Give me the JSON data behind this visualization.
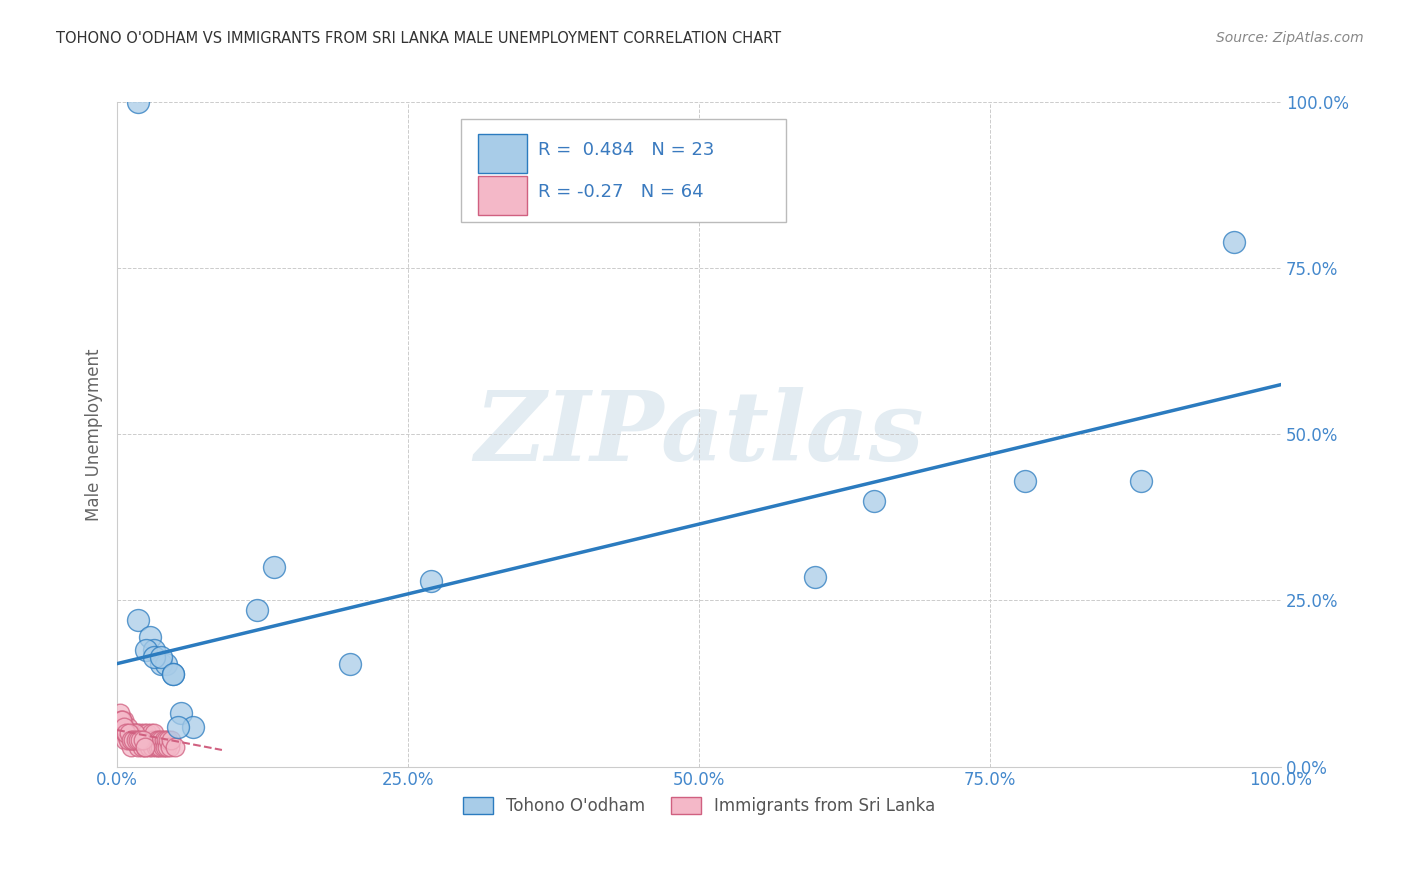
{
  "title": "TOHONO O'ODHAM VS IMMIGRANTS FROM SRI LANKA MALE UNEMPLOYMENT CORRELATION CHART",
  "source": "Source: ZipAtlas.com",
  "ylabel": "Male Unemployment",
  "xlim": [
    0.0,
    1.0
  ],
  "ylim": [
    0.0,
    1.0
  ],
  "xticks": [
    0.0,
    0.25,
    0.5,
    0.75,
    1.0
  ],
  "yticks": [
    0.0,
    0.25,
    0.5,
    0.75,
    1.0
  ],
  "xticklabels": [
    "0.0%",
    "25.0%",
    "50.0%",
    "75.0%",
    "100.0%"
  ],
  "yticklabels": [
    "0.0%",
    "25.0%",
    "50.0%",
    "75.0%",
    "100.0%"
  ],
  "blue_color": "#a8cce8",
  "pink_color": "#f4b8c8",
  "trend_blue_color": "#2b7bbf",
  "trend_pink_color": "#d06080",
  "R_blue": 0.484,
  "N_blue": 23,
  "R_pink": -0.27,
  "N_pink": 64,
  "legend_label_blue": "Tohono O'odham",
  "legend_label_pink": "Immigrants from Sri Lanka",
  "watermark": "ZIPatlas",
  "background_color": "#ffffff",
  "blue_label_color": "#3a7abf",
  "tick_color": "#4488cc",
  "title_color": "#333333",
  "source_color": "#888888",
  "ylabel_color": "#666666",
  "blue_trend_start_x": 0.0,
  "blue_trend_start_y": 0.155,
  "blue_trend_end_x": 1.0,
  "blue_trend_end_y": 0.575,
  "pink_trend_start_x": 0.0,
  "pink_trend_start_y": 0.055,
  "pink_trend_end_x": 0.09,
  "pink_trend_end_y": 0.025,
  "blue_points_x": [
    0.018,
    0.028,
    0.032,
    0.038,
    0.042,
    0.048,
    0.055,
    0.065,
    0.12,
    0.135,
    0.27,
    0.6,
    0.78,
    0.88,
    0.96,
    0.025,
    0.032,
    0.038,
    0.048,
    0.052,
    0.2,
    0.018,
    0.65
  ],
  "blue_points_y": [
    0.22,
    0.195,
    0.175,
    0.155,
    0.155,
    0.14,
    0.08,
    0.06,
    0.235,
    0.3,
    0.28,
    0.285,
    0.43,
    0.43,
    0.79,
    0.175,
    0.165,
    0.165,
    0.14,
    0.06,
    0.155,
    1.0,
    0.4
  ],
  "pink_points_x": [
    0.003,
    0.005,
    0.006,
    0.007,
    0.008,
    0.009,
    0.01,
    0.011,
    0.012,
    0.013,
    0.014,
    0.015,
    0.016,
    0.017,
    0.018,
    0.019,
    0.02,
    0.021,
    0.022,
    0.023,
    0.024,
    0.025,
    0.026,
    0.027,
    0.028,
    0.029,
    0.03,
    0.031,
    0.032,
    0.033,
    0.034,
    0.035,
    0.036,
    0.037,
    0.038,
    0.039,
    0.04,
    0.041,
    0.042,
    0.043,
    0.044,
    0.045,
    0.046,
    0.004,
    0.005,
    0.007,
    0.009,
    0.011,
    0.013,
    0.015,
    0.002,
    0.003,
    0.004,
    0.006,
    0.008,
    0.01,
    0.012,
    0.014,
    0.016,
    0.018,
    0.02,
    0.022,
    0.024,
    0.05
  ],
  "pink_points_y": [
    0.06,
    0.05,
    0.07,
    0.04,
    0.05,
    0.06,
    0.04,
    0.05,
    0.03,
    0.05,
    0.04,
    0.05,
    0.04,
    0.05,
    0.03,
    0.04,
    0.05,
    0.03,
    0.04,
    0.05,
    0.03,
    0.04,
    0.05,
    0.03,
    0.04,
    0.05,
    0.03,
    0.04,
    0.05,
    0.03,
    0.04,
    0.03,
    0.04,
    0.03,
    0.04,
    0.03,
    0.04,
    0.03,
    0.04,
    0.03,
    0.04,
    0.03,
    0.04,
    0.07,
    0.06,
    0.05,
    0.04,
    0.05,
    0.04,
    0.05,
    0.08,
    0.07,
    0.07,
    0.06,
    0.05,
    0.05,
    0.04,
    0.04,
    0.04,
    0.04,
    0.04,
    0.04,
    0.03,
    0.03
  ]
}
